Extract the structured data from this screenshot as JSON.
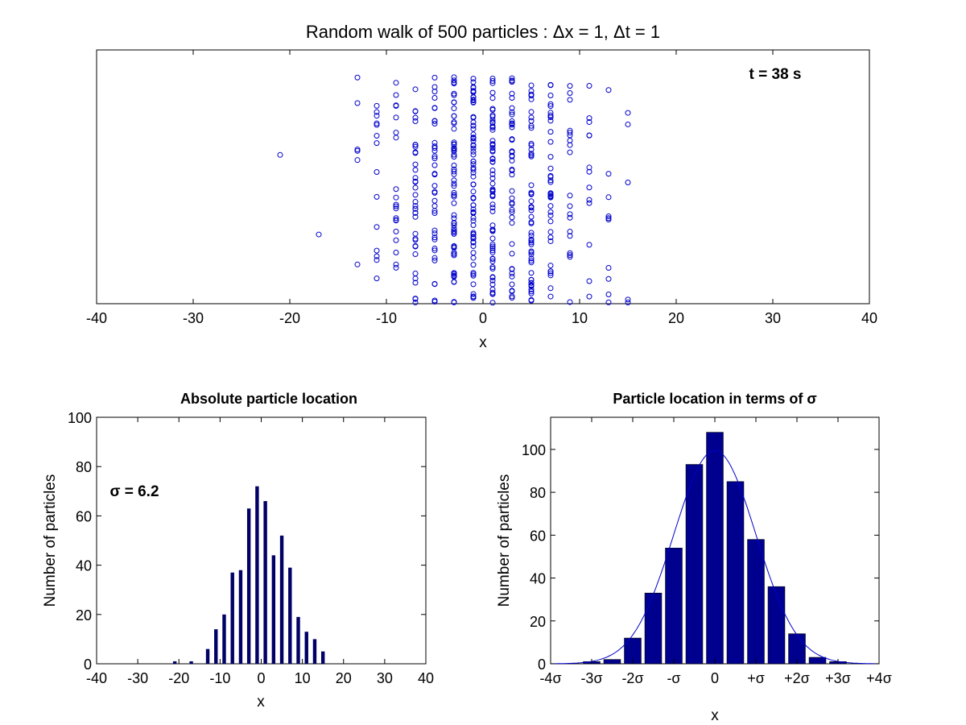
{
  "chart_data": [
    {
      "id": "scatter",
      "type": "scatter",
      "title": "Random walk of 500 particles : Δx = 1, Δt = 1",
      "xlabel": "x",
      "ylabel": "",
      "xlim": [
        -40,
        40
      ],
      "xticks": [
        -40,
        -30,
        -20,
        -10,
        0,
        10,
        20,
        30,
        40
      ],
      "xtick_labels": [
        "-40",
        "-30",
        "-20",
        "-10",
        "0",
        "10",
        "20",
        "30",
        "40"
      ],
      "yticks": [],
      "annotation": "t = 38 s",
      "marker": "open-circle",
      "color": "#0000cc",
      "particle_count": 500,
      "x_positions": [
        -21,
        -17,
        -13,
        -11,
        -9,
        -7,
        -5,
        -3,
        -1,
        1,
        3,
        5,
        7,
        9,
        11,
        13,
        15
      ],
      "particles_per_x": [
        1,
        1,
        6,
        14,
        20,
        37,
        38,
        63,
        72,
        66,
        44,
        52,
        39,
        19,
        13,
        10,
        5
      ],
      "y_note": "random vertical spread (unlabeled axis, values 0-1)"
    },
    {
      "id": "hist-absolute",
      "type": "bar",
      "title": "Absolute particle location",
      "xlabel": "x",
      "ylabel": "Number of particles",
      "xlim": [
        -40,
        40
      ],
      "ylim": [
        0,
        100
      ],
      "xticks": [
        -40,
        -30,
        -20,
        -10,
        0,
        10,
        20,
        30,
        40
      ],
      "xtick_labels": [
        "-40",
        "-30",
        "-20",
        "-10",
        "0",
        "10",
        "20",
        "30",
        "40"
      ],
      "yticks": [
        0,
        20,
        40,
        60,
        80,
        100
      ],
      "ytick_labels": [
        "0",
        "20",
        "40",
        "60",
        "80",
        "100"
      ],
      "annotation": "σ = 6.2",
      "color": "#000066",
      "x": [
        -21,
        -17,
        -13,
        -11,
        -9,
        -7,
        -5,
        -3,
        -1,
        1,
        3,
        5,
        7,
        9,
        11,
        13,
        15
      ],
      "values": [
        1,
        1,
        6,
        14,
        20,
        37,
        38,
        63,
        72,
        66,
        44,
        52,
        39,
        19,
        13,
        10,
        5
      ]
    },
    {
      "id": "hist-sigma",
      "type": "bar",
      "title": "Particle location in terms of σ",
      "xlabel": "x",
      "ylabel": "Number of particles",
      "xlim": [
        -4,
        4
      ],
      "ylim": [
        0,
        115
      ],
      "xticks": [
        -4,
        -3,
        -2,
        -1,
        0,
        1,
        2,
        3,
        4
      ],
      "xtick_labels": [
        "-4σ",
        "-3σ",
        "-2σ",
        "-σ",
        "0",
        "+σ",
        "+2σ",
        "+3σ",
        "+4σ"
      ],
      "yticks": [
        0,
        20,
        40,
        60,
        80,
        100
      ],
      "ytick_labels": [
        "0",
        "20",
        "40",
        "60",
        "80",
        "100"
      ],
      "color": "#00008f",
      "x_sigma": [
        -3,
        -2.5,
        -2,
        -1.5,
        -1,
        -0.5,
        0,
        0.5,
        1,
        1.5,
        2,
        2.5,
        3
      ],
      "values": [
        1,
        2,
        12,
        33,
        54,
        93,
        108,
        85,
        58,
        36,
        14,
        3,
        1
      ],
      "fit_curve": {
        "type": "gaussian",
        "peak": 99.5,
        "mean": 0,
        "sigma": 1,
        "color": "#0000cc"
      }
    }
  ]
}
